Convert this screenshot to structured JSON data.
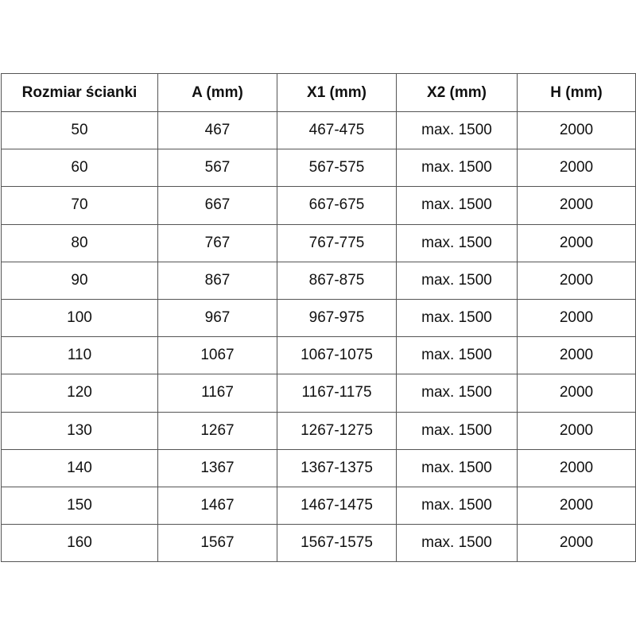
{
  "table": {
    "headers": [
      "Rozmiar ścianki",
      "A (mm)",
      "X1 (mm)",
      "X2 (mm)",
      "H (mm)"
    ],
    "rows": [
      [
        "50",
        "467",
        "467-475",
        "max. 1500",
        "2000"
      ],
      [
        "60",
        "567",
        "567-575",
        "max. 1500",
        "2000"
      ],
      [
        "70",
        "667",
        "667-675",
        "max. 1500",
        "2000"
      ],
      [
        "80",
        "767",
        "767-775",
        "max. 1500",
        "2000"
      ],
      [
        "90",
        "867",
        "867-875",
        "max. 1500",
        "2000"
      ],
      [
        "100",
        "967",
        "967-975",
        "max. 1500",
        "2000"
      ],
      [
        "110",
        "1067",
        "1067-1075",
        "max. 1500",
        "2000"
      ],
      [
        "120",
        "1167",
        "1167-1175",
        "max. 1500",
        "2000"
      ],
      [
        "130",
        "1267",
        "1267-1275",
        "max. 1500",
        "2000"
      ],
      [
        "140",
        "1367",
        "1367-1375",
        "max. 1500",
        "2000"
      ],
      [
        "150",
        "1467",
        "1467-1475",
        "max. 1500",
        "2000"
      ],
      [
        "160",
        "1567",
        "1567-1575",
        "max. 1500",
        "2000"
      ]
    ]
  }
}
